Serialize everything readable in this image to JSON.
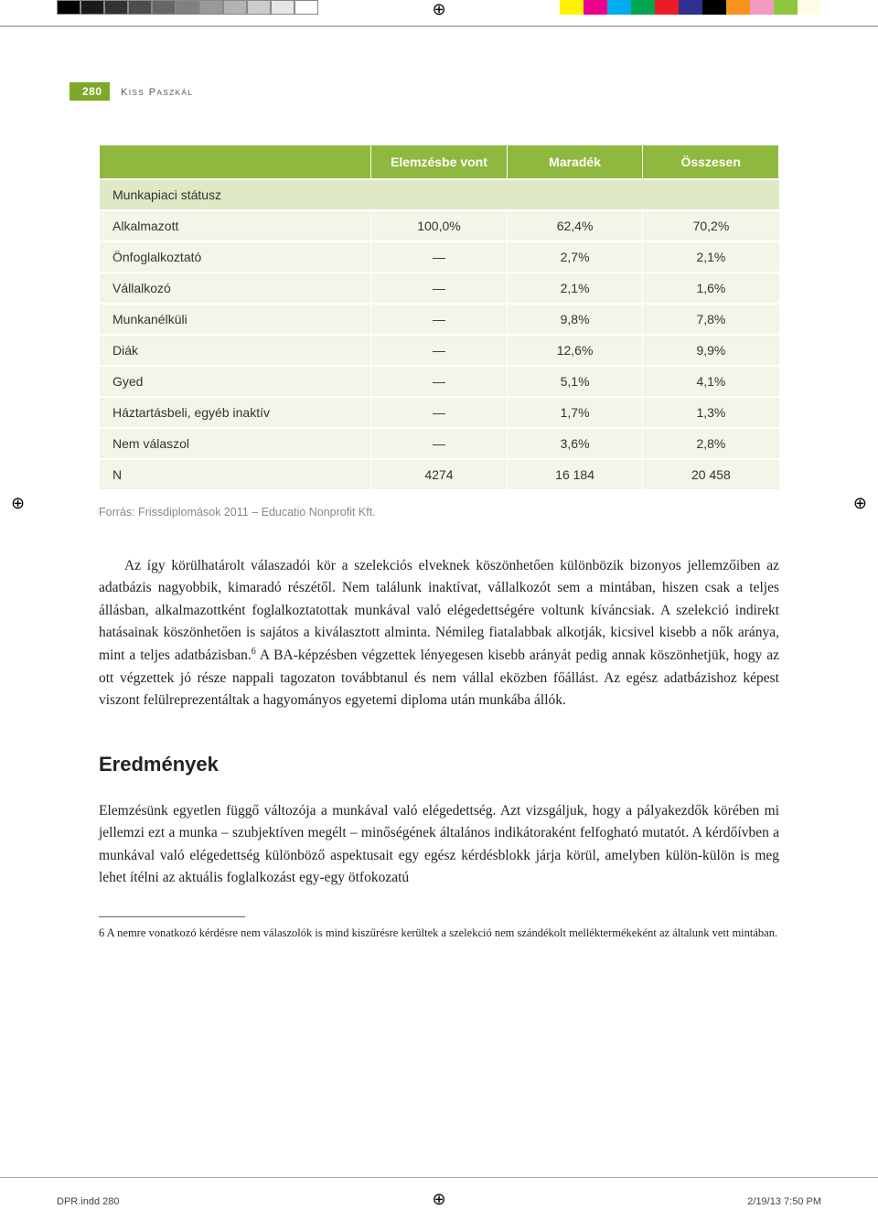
{
  "printbar": {
    "grays": [
      "#000000",
      "#1a1a1a",
      "#333333",
      "#4d4d4d",
      "#666666",
      "#808080",
      "#999999",
      "#b3b3b3",
      "#cccccc",
      "#e6e6e6",
      "#ffffff"
    ],
    "colors": [
      "#fff200",
      "#ec008c",
      "#00aeef",
      "#00a651",
      "#ed1c24",
      "#2e3192",
      "#000000",
      "#f7941d",
      "#f49ac1",
      "#8dc63f",
      "#fffde7"
    ]
  },
  "header": {
    "page_number": "280",
    "author": "Kiss Paszkál"
  },
  "table": {
    "headers": [
      "",
      "Elemzésbe vont",
      "Maradék",
      "Összesen"
    ],
    "section_label": "Munkapiaci státusz",
    "rows": [
      [
        "Alkalmazott",
        "100,0%",
        "62,4%",
        "70,2%"
      ],
      [
        "Önfoglalkoztató",
        "—",
        "2,7%",
        "2,1%"
      ],
      [
        "Vállalkozó",
        "—",
        "2,1%",
        "1,6%"
      ],
      [
        "Munkanélküli",
        "—",
        "9,8%",
        "7,8%"
      ],
      [
        "Diák",
        "—",
        "12,6%",
        "9,9%"
      ],
      [
        "Gyed",
        "—",
        "5,1%",
        "4,1%"
      ],
      [
        "Háztartásbeli, egyéb inaktív",
        "—",
        "1,7%",
        "1,3%"
      ],
      [
        "Nem válaszol",
        "—",
        "3,6%",
        "2,8%"
      ],
      [
        "N",
        "4274",
        "16 184",
        "20 458"
      ]
    ],
    "colors": {
      "header_bg": "#8fb83f",
      "header_text": "#ffffff",
      "section_bg": "#dfe9c6",
      "row_bg": "#f2f5e7",
      "text": "#333333"
    },
    "col_widths": [
      "40%",
      "20%",
      "20%",
      "20%"
    ]
  },
  "source_line": "Forrás: Frissdiplomások 2011 – Educatio Nonprofit Kft.",
  "paragraph1": "Az így körülhatárolt válaszadói kör a szelekciós elveknek köszönhetően különbözik bizonyos jellemzőiben az adatbázis nagyobbik, kimaradó részétől. Nem találunk inaktívat, vállalkozót sem a mintában, hiszen csak a teljes állásban, alkalmazottként foglalkoztatottak munkával való elégedettségére voltunk kíváncsiak. A szelekció indirekt hatásainak köszönhetően is sajátos a kiválasztott alminta. Némileg fiatalabbak alkotják, kicsivel kisebb a nők aránya, mint a teljes adatbázisban.",
  "paragraph1_cont": " A BA-képzésben végzettek lényegesen kisebb arányát pedig annak köszönhetjük, hogy az ott végzettek jó része nappali tagozaton továbbtanul és nem vállal eközben főállást. Az egész adatbázishoz képest viszont felülreprezentáltak a hagyományos egyetemi diploma után munkába állók.",
  "section_title": "Eredmények",
  "paragraph2": "Elemzésünk egyetlen függő változója a munkával való elégedettség. Azt vizsgáljuk, hogy a pályakezdők körében mi jellemzi ezt a munka – szubjektíven megélt – minőségének általános indikátoraként felfogható mutatót. A kérdőívben a munkával való elégedettség különböző aspektusait egy egész kérdésblokk járja körül, amelyben külön-külön is meg lehet ítélni az aktuális foglalkozást egy-egy ötfokozatú",
  "footnote": "6 A nemre vonatkozó kérdésre nem válaszolók is mind kiszűrésre kerültek a szelekció nem szándékolt melléktermékeként az általunk vett mintában.",
  "footer": {
    "left": "DPR.indd   280",
    "right": "2/19/13   7:50 PM"
  }
}
